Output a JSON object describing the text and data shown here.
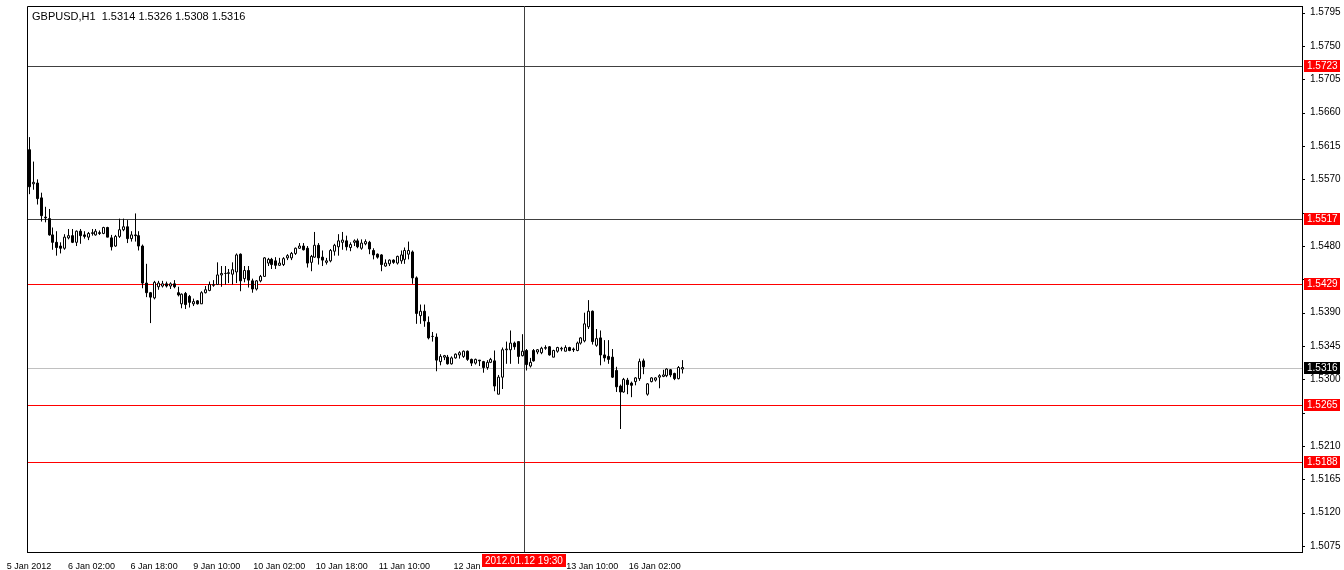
{
  "chart_data": {
    "type": "candlestick",
    "title": "GBPUSD,H1  1.5314 1.5326 1.5308 1.5316",
    "color": "#000000",
    "categories": [
      "5 Jan 2012",
      null,
      null,
      null,
      null,
      null,
      null,
      null,
      null,
      null,
      null,
      null,
      null,
      null,
      null,
      null,
      "6 Jan 02:00",
      null,
      null,
      null,
      null,
      null,
      null,
      null,
      null,
      null,
      null,
      null,
      null,
      null,
      null,
      null,
      "6 Jan 18:00",
      null,
      null,
      null,
      null,
      null,
      null,
      null,
      null,
      null,
      null,
      null,
      null,
      null,
      null,
      null,
      "9 Jan 10:00",
      null,
      null,
      null,
      null,
      null,
      null,
      null,
      null,
      null,
      null,
      null,
      null,
      null,
      null,
      null,
      "10 Jan 02:00",
      null,
      null,
      null,
      null,
      null,
      null,
      null,
      null,
      null,
      null,
      null,
      null,
      null,
      null,
      null,
      "10 Jan 18:00",
      null,
      null,
      null,
      null,
      null,
      null,
      null,
      null,
      null,
      null,
      null,
      null,
      null,
      null,
      null,
      "11 Jan 10:00",
      null,
      null,
      null,
      null,
      null,
      null,
      null,
      null,
      null,
      null,
      null,
      null,
      null,
      null,
      null,
      "12 Jan",
      null,
      null,
      null,
      null,
      null,
      null,
      null,
      null,
      null,
      null,
      null,
      null,
      null,
      null,
      null,
      null,
      null,
      null,
      null,
      null,
      null,
      null,
      null,
      null,
      null,
      null,
      null,
      null,
      null,
      null,
      null,
      "13 Jan 10:00",
      null,
      null,
      null,
      null,
      null,
      null,
      null,
      null,
      null,
      null,
      null,
      null,
      null,
      null,
      null,
      "16 Jan 02:00",
      null,
      null,
      null,
      null,
      null,
      null,
      null,
      null,
      null,
      null,
      null,
      null,
      null,
      null,
      null,
      null,
      null,
      null,
      null,
      null,
      null,
      null,
      null,
      null,
      null,
      null,
      null,
      null,
      null,
      null,
      null,
      null,
      null,
      null,
      null,
      null,
      null,
      null,
      null,
      null,
      null,
      null,
      null,
      null,
      null,
      null,
      null,
      null,
      null,
      null,
      null,
      null,
      null,
      null,
      null,
      null,
      null,
      null,
      null,
      null,
      null,
      null,
      null,
      null,
      null,
      null,
      null,
      null,
      null,
      null,
      null,
      null,
      null,
      null,
      null,
      null,
      null,
      null,
      null,
      null,
      null,
      null,
      null,
      null,
      null,
      null,
      null,
      null,
      null,
      null,
      null,
      null,
      null,
      null,
      null,
      null,
      null,
      null,
      null,
      null,
      null,
      null,
      null,
      null,
      null,
      null,
      null,
      null,
      null,
      null,
      null,
      null,
      null,
      null,
      null,
      null,
      null,
      null,
      null,
      null,
      null,
      null,
      null,
      null,
      null,
      null,
      null,
      null,
      null,
      null,
      null,
      null,
      null,
      null,
      null,
      null,
      null,
      null,
      null,
      null,
      null,
      null,
      null,
      null,
      null,
      null,
      null,
      null,
      null,
      null,
      null,
      null,
      null,
      null,
      null,
      null,
      null,
      null,
      null,
      null,
      null,
      null,
      null,
      null,
      null
    ],
    "ohlc": [
      [
        1.561,
        1.5627,
        1.555,
        1.556
      ],
      [
        1.5564,
        1.5594,
        1.5556,
        1.5566
      ],
      [
        1.5565,
        1.557,
        1.5536,
        1.5544
      ],
      [
        1.5545,
        1.5552,
        1.5513,
        1.5521
      ],
      [
        1.5519,
        1.5533,
        1.5512,
        1.5518
      ],
      [
        1.5517,
        1.553,
        1.5494,
        1.5495
      ],
      [
        1.5495,
        1.5505,
        1.5475,
        1.5485
      ],
      [
        1.5485,
        1.55,
        1.5467,
        1.5478
      ],
      [
        1.548,
        1.5485,
        1.547,
        1.5477
      ],
      [
        1.5477,
        1.5496,
        1.5475,
        1.5492
      ],
      [
        1.5491,
        1.5503,
        1.5489,
        1.5494
      ],
      [
        1.5494,
        1.5503,
        1.5484,
        1.5485
      ],
      [
        1.5485,
        1.5501,
        1.548,
        1.55
      ],
      [
        1.55,
        1.5503,
        1.5483,
        1.5494
      ],
      [
        1.5495,
        1.55,
        1.549,
        1.5493
      ],
      [
        1.5492,
        1.5499,
        1.5488,
        1.5497
      ],
      [
        1.5497,
        1.5503,
        1.5494,
        1.5498
      ],
      [
        1.5495,
        1.5503,
        1.5494,
        1.55
      ],
      [
        1.5498,
        1.5501,
        1.5495,
        1.5497
      ],
      [
        1.5497,
        1.5506,
        1.5496,
        1.5505
      ],
      [
        1.5505,
        1.5506,
        1.5492,
        1.5492
      ],
      [
        1.5491,
        1.5495,
        1.5474,
        1.5479
      ],
      [
        1.548,
        1.5495,
        1.5479,
        1.5493
      ],
      [
        1.5493,
        1.5517,
        1.5491,
        1.5502
      ],
      [
        1.5502,
        1.5517,
        1.55,
        1.5506
      ],
      [
        1.5506,
        1.5515,
        1.5484,
        1.549
      ],
      [
        1.549,
        1.55,
        1.5486,
        1.5495
      ],
      [
        1.5495,
        1.5524,
        1.5486,
        1.5494
      ],
      [
        1.5494,
        1.55,
        1.5474,
        1.548
      ],
      [
        1.548,
        1.5482,
        1.5423,
        1.543
      ],
      [
        1.543,
        1.5456,
        1.5411,
        1.5417
      ],
      [
        1.5417,
        1.5418,
        1.5376,
        1.5411
      ],
      [
        1.541,
        1.5433,
        1.5408,
        1.5431
      ],
      [
        1.5425,
        1.5433,
        1.5421,
        1.543
      ],
      [
        1.5426,
        1.5433,
        1.5424,
        1.5429
      ],
      [
        1.5429,
        1.5432,
        1.5424,
        1.5426
      ],
      [
        1.5426,
        1.5431,
        1.5422,
        1.5429
      ],
      [
        1.5429,
        1.5434,
        1.5423,
        1.5425
      ],
      [
        1.5417,
        1.5425,
        1.5412,
        1.5414
      ],
      [
        1.5402,
        1.5416,
        1.5396,
        1.5415
      ],
      [
        1.5416,
        1.5418,
        1.5395,
        1.5401
      ],
      [
        1.5412,
        1.5414,
        1.5397,
        1.5404
      ],
      [
        1.5402,
        1.5409,
        1.5399,
        1.5405
      ],
      [
        1.5406,
        1.5407,
        1.5401,
        1.5402
      ],
      [
        1.5402,
        1.5419,
        1.5402,
        1.5417
      ],
      [
        1.5417,
        1.5426,
        1.5416,
        1.5421
      ],
      [
        1.542,
        1.5432,
        1.5419,
        1.5428
      ],
      [
        1.5427,
        1.5434,
        1.5425,
        1.5428
      ],
      [
        1.5428,
        1.5458,
        1.5428,
        1.5441
      ],
      [
        1.5441,
        1.5453,
        1.5425,
        1.5443
      ],
      [
        1.5443,
        1.5453,
        1.5428,
        1.5443
      ],
      [
        1.5443,
        1.5449,
        1.543,
        1.5444
      ],
      [
        1.5442,
        1.5458,
        1.5428,
        1.5448
      ],
      [
        1.5445,
        1.547,
        1.543,
        1.5468
      ],
      [
        1.5469,
        1.547,
        1.5419,
        1.5433
      ],
      [
        1.5436,
        1.5453,
        1.5431,
        1.5447
      ],
      [
        1.5447,
        1.5453,
        1.5424,
        1.5434
      ],
      [
        1.5433,
        1.5436,
        1.5417,
        1.5422
      ],
      [
        1.5422,
        1.5434,
        1.542,
        1.5433
      ],
      [
        1.5433,
        1.5441,
        1.5431,
        1.5439
      ],
      [
        1.5439,
        1.5465,
        1.5439,
        1.5464
      ],
      [
        1.5457,
        1.5464,
        1.5453,
        1.5462
      ],
      [
        1.5462,
        1.5464,
        1.5449,
        1.5455
      ],
      [
        1.546,
        1.5465,
        1.5449,
        1.5454
      ],
      [
        1.5454,
        1.5464,
        1.5453,
        1.5457
      ],
      [
        1.5455,
        1.5465,
        1.5453,
        1.5463
      ],
      [
        1.5464,
        1.5469,
        1.5461,
        1.5467
      ],
      [
        1.5464,
        1.5472,
        1.5461,
        1.547
      ],
      [
        1.547,
        1.5478,
        1.5468,
        1.5477
      ],
      [
        1.5477,
        1.5484,
        1.5476,
        1.548
      ],
      [
        1.548,
        1.5484,
        1.5474,
        1.5475
      ],
      [
        1.5477,
        1.548,
        1.5451,
        1.5457
      ],
      [
        1.5458,
        1.5468,
        1.5446,
        1.5466
      ],
      [
        1.5465,
        1.5499,
        1.5464,
        1.5481
      ],
      [
        1.5481,
        1.5484,
        1.5455,
        1.5464
      ],
      [
        1.5465,
        1.5474,
        1.5453,
        1.5461
      ],
      [
        1.5458,
        1.5464,
        1.5455,
        1.546
      ],
      [
        1.546,
        1.5476,
        1.5458,
        1.5474
      ],
      [
        1.5473,
        1.5483,
        1.5467,
        1.5481
      ],
      [
        1.5479,
        1.5496,
        1.5467,
        1.5487
      ],
      [
        1.5485,
        1.5499,
        1.5475,
        1.5488
      ],
      [
        1.5487,
        1.5494,
        1.5474,
        1.5479
      ],
      [
        1.5478,
        1.5485,
        1.5473,
        1.5482
      ],
      [
        1.5485,
        1.5489,
        1.548,
        1.5487
      ],
      [
        1.5487,
        1.549,
        1.5477,
        1.5479
      ],
      [
        1.5477,
        1.5489,
        1.5475,
        1.5484
      ],
      [
        1.5483,
        1.5489,
        1.5481,
        1.5486
      ],
      [
        1.5485,
        1.5487,
        1.5469,
        1.5476
      ],
      [
        1.5474,
        1.5477,
        1.5462,
        1.5468
      ],
      [
        1.5469,
        1.547,
        1.5463,
        1.5465
      ],
      [
        1.5468,
        1.5469,
        1.5446,
        1.5455
      ],
      [
        1.5453,
        1.5462,
        1.5452,
        1.5457
      ],
      [
        1.5456,
        1.5462,
        1.5453,
        1.5461
      ],
      [
        1.5461,
        1.5462,
        1.5456,
        1.5458
      ],
      [
        1.5457,
        1.5467,
        1.5455,
        1.5466
      ],
      [
        1.546,
        1.5474,
        1.5456,
        1.5468
      ],
      [
        1.5462,
        1.5478,
        1.5456,
        1.5474
      ],
      [
        1.5469,
        1.5486,
        1.5462,
        1.5474
      ],
      [
        1.5472,
        1.5474,
        1.5429,
        1.5437
      ],
      [
        1.5437,
        1.5439,
        1.5375,
        1.5389
      ],
      [
        1.5386,
        1.5401,
        1.5375,
        1.5392
      ],
      [
        1.5392,
        1.5401,
        1.5371,
        1.5379
      ],
      [
        1.5377,
        1.5385,
        1.5354,
        1.5356
      ],
      [
        1.5358,
        1.5364,
        1.5351,
        1.5358
      ],
      [
        1.5357,
        1.5362,
        1.5311,
        1.5326
      ],
      [
        1.5324,
        1.5334,
        1.5319,
        1.5331
      ],
      [
        1.533,
        1.5333,
        1.5326,
        1.5332
      ],
      [
        1.533,
        1.5333,
        1.532,
        1.5321
      ],
      [
        1.5321,
        1.5331,
        1.532,
        1.5329
      ],
      [
        1.5329,
        1.5335,
        1.5328,
        1.5334
      ],
      [
        1.5333,
        1.5338,
        1.5328,
        1.5336
      ],
      [
        1.5331,
        1.5339,
        1.5329,
        1.5338
      ],
      [
        1.5338,
        1.5339,
        1.5325,
        1.5327
      ],
      [
        1.5327,
        1.5328,
        1.5318,
        1.5322
      ],
      [
        1.5322,
        1.5328,
        1.532,
        1.5327
      ],
      [
        1.5326,
        1.5326,
        1.5318,
        1.5325
      ],
      [
        1.5324,
        1.5325,
        1.5309,
        1.5316
      ],
      [
        1.5316,
        1.5326,
        1.5313,
        1.5323
      ],
      [
        1.5323,
        1.5329,
        1.5322,
        1.5327
      ],
      [
        1.5325,
        1.5339,
        1.5284,
        1.5291
      ],
      [
        1.528,
        1.5306,
        1.528,
        1.5303
      ],
      [
        1.5303,
        1.5343,
        1.5287,
        1.534
      ],
      [
        1.534,
        1.5351,
        1.5321,
        1.5341
      ],
      [
        1.534,
        1.5366,
        1.5321,
        1.5349
      ],
      [
        1.5349,
        1.5351,
        1.534,
        1.5344
      ],
      [
        1.5351,
        1.5351,
        1.5321,
        1.5331
      ],
      [
        1.5332,
        1.5361,
        1.5331,
        1.5338
      ],
      [
        1.5339,
        1.5341,
        1.5312,
        1.532
      ],
      [
        1.5318,
        1.5329,
        1.5316,
        1.5323
      ],
      [
        1.5339,
        1.5341,
        1.5324,
        1.5325
      ],
      [
        1.5337,
        1.5341,
        1.5334,
        1.534
      ],
      [
        1.5336,
        1.5344,
        1.5334,
        1.5342
      ],
      [
        1.5342,
        1.5346,
        1.534,
        1.5343
      ],
      [
        1.5344,
        1.5345,
        1.5332,
        1.5333
      ],
      [
        1.533,
        1.534,
        1.533,
        1.5339
      ],
      [
        1.5338,
        1.5344,
        1.5336,
        1.5343
      ],
      [
        1.5341,
        1.5344,
        1.5338,
        1.5342
      ],
      [
        1.5338,
        1.5346,
        1.5338,
        1.5343
      ],
      [
        1.5343,
        1.5344,
        1.5338,
        1.5339
      ],
      [
        1.5341,
        1.5343,
        1.5337,
        1.534
      ],
      [
        1.5339,
        1.5351,
        1.5338,
        1.5349
      ],
      [
        1.5349,
        1.5357,
        1.5347,
        1.5356
      ],
      [
        1.5352,
        1.539,
        1.535,
        1.5375
      ],
      [
        1.5371,
        1.5407,
        1.5368,
        1.5392
      ],
      [
        1.5392,
        1.5393,
        1.5347,
        1.5351
      ],
      [
        1.5346,
        1.5368,
        1.5344,
        1.5355
      ],
      [
        1.5356,
        1.5366,
        1.5319,
        1.5333
      ],
      [
        1.5333,
        1.5353,
        1.5324,
        1.5329
      ],
      [
        1.5331,
        1.5353,
        1.5321,
        1.5327
      ],
      [
        1.533,
        1.5341,
        1.5302,
        1.5303
      ],
      [
        1.5312,
        1.5317,
        1.5283,
        1.529
      ],
      [
        1.5291,
        1.5293,
        1.5233,
        1.5283
      ],
      [
        1.5283,
        1.5302,
        1.5282,
        1.53
      ],
      [
        1.5299,
        1.5302,
        1.528,
        1.5293
      ],
      [
        1.5295,
        1.5297,
        1.5276,
        1.5292
      ],
      [
        1.5297,
        1.5303,
        1.5292,
        1.5302
      ],
      [
        1.5301,
        1.5328,
        1.5298,
        1.5324
      ],
      [
        1.5325,
        1.5328,
        1.5307,
        1.5317
      ],
      [
        1.528,
        1.5295,
        1.5278,
        1.5294
      ],
      [
        1.5297,
        1.5303,
        1.5296,
        1.5302
      ],
      [
        1.5299,
        1.5303,
        1.5297,
        1.5302
      ],
      [
        1.5303,
        1.5307,
        1.5288,
        1.5305
      ],
      [
        1.5304,
        1.5313,
        1.5303,
        1.5306
      ],
      [
        1.5305,
        1.5315,
        1.5303,
        1.5314
      ],
      [
        1.5313,
        1.5314,
        1.5303,
        1.5306
      ],
      [
        1.5308,
        1.5309,
        1.5299,
        1.5301
      ],
      [
        1.5301,
        1.5318,
        1.53,
        1.5316
      ],
      [
        1.5314,
        1.5326,
        1.5308,
        1.5316
      ],
      null,
      null,
      null,
      null,
      null,
      null,
      null,
      null,
      null,
      null,
      null,
      null,
      null,
      null,
      null,
      null,
      null,
      null,
      null,
      null,
      null,
      null,
      null,
      null,
      null,
      null,
      null,
      null,
      null,
      null,
      null,
      null,
      null,
      null,
      null,
      null,
      null,
      null,
      null,
      null,
      null,
      null,
      null,
      null,
      null,
      null,
      null,
      null,
      null,
      null,
      null,
      null,
      null,
      null,
      null,
      null,
      null,
      null,
      null,
      null,
      null,
      null,
      null,
      null,
      null,
      null,
      null,
      null,
      null,
      null,
      null,
      null,
      null,
      null,
      null,
      null,
      null,
      null,
      null,
      null,
      null,
      null,
      null,
      null,
      null,
      null,
      null,
      null,
      null,
      null,
      null,
      null,
      null,
      null,
      null,
      null,
      null,
      null,
      null,
      null,
      null,
      null,
      null,
      null,
      null,
      null,
      null,
      null,
      null,
      null,
      null,
      null,
      null,
      null,
      null,
      null,
      null,
      null,
      null,
      null,
      null,
      null,
      null,
      null,
      null,
      null,
      null,
      null,
      null,
      null,
      null,
      null,
      null,
      null,
      null,
      null,
      null,
      null,
      null,
      null,
      null,
      null,
      null,
      null,
      null,
      null,
      null,
      null,
      null,
      null,
      null,
      null,
      null,
      null,
      null,
      null,
      null,
      null
    ],
    "ylim": [
      1.5067,
      1.5804
    ],
    "yticks": [
      1.5075,
      {
        "value": 1.512,
        "label": "1.5120"
      },
      1.5165,
      {
        "value": 1.521,
        "label": "1.5210"
      },
      {
        "value": 1.5255,
        "label": null
      },
      {
        "value": 1.53,
        "label": "1.5300"
      },
      1.5345,
      {
        "value": 1.539,
        "label": "1.5390"
      },
      {
        "value": 1.5435,
        "label": null
      },
      {
        "value": 1.548,
        "label": "1.5480"
      },
      {
        "value": 1.5525,
        "label": null
      },
      {
        "value": 1.557,
        "label": "1.5570"
      },
      1.5615,
      {
        "value": 1.566,
        "label": "1.5660"
      },
      1.5705,
      {
        "value": 1.575,
        "label": "1.5750"
      },
      1.5795
    ],
    "ref_lines": [
      {
        "axis": "y",
        "value": 1.5723,
        "label": "1.5723",
        "color": "#404040"
      },
      {
        "axis": "y",
        "value": 1.5517,
        "label": "1.5517",
        "color": "#404040"
      },
      {
        "axis": "y",
        "value": 1.5429,
        "label": "1.5429",
        "color": "#ff0000"
      },
      {
        "axis": "y",
        "value": 1.5265,
        "label": "1.5265",
        "color": "#ff0000"
      },
      {
        "axis": "y",
        "value": 1.5188,
        "label": "1.5188",
        "color": "#ff0000"
      },
      {
        "axis": "y",
        "value": 1.5316,
        "label": "1.5316",
        "color": "#c0c0c0"
      }
    ],
    "annotations": [
      "2012.01.12 19:30"
    ]
  }
}
